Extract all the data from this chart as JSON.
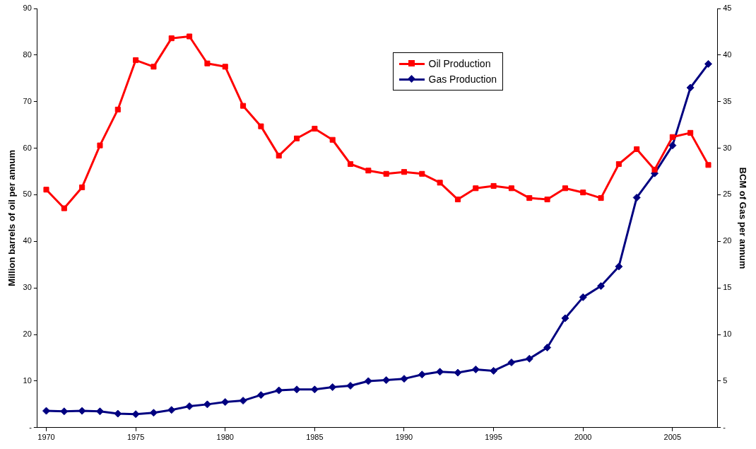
{
  "chart_data": {
    "type": "line",
    "ylabel": "Million barrels of oil per annum",
    "y2label": "BCM of Gas per annum",
    "x": [
      1970,
      1971,
      1972,
      1973,
      1974,
      1975,
      1976,
      1977,
      1978,
      1979,
      1980,
      1981,
      1982,
      1983,
      1984,
      1985,
      1986,
      1987,
      1988,
      1989,
      1990,
      1991,
      1992,
      1993,
      1994,
      1995,
      1996,
      1997,
      1998,
      1999,
      2000,
      2001,
      2002,
      2003,
      2004,
      2005,
      2006,
      2007
    ],
    "series": [
      {
        "name": "Oil Production",
        "color": "#ff0000",
        "marker": "square",
        "values": [
          51.1,
          47.1,
          51.6,
          60.6,
          68.3,
          78.9,
          77.5,
          83.6,
          84.0,
          78.2,
          77.5,
          69.1,
          64.7,
          58.4,
          62.1,
          64.2,
          61.8,
          56.6,
          55.2,
          54.5,
          54.9,
          54.5,
          52.6,
          49.0,
          51.4,
          51.9,
          51.4,
          49.3,
          49.0,
          51.4,
          50.5,
          49.3,
          56.6,
          59.8,
          55.4,
          62.4,
          63.3,
          56.4
        ]
      },
      {
        "name": "Gas Production",
        "color": "#000080",
        "marker": "diamond",
        "axis": "y2",
        "values": [
          1.8,
          1.75,
          1.8,
          1.75,
          1.5,
          1.45,
          1.6,
          1.9,
          2.3,
          2.5,
          2.75,
          2.9,
          3.5,
          4.0,
          4.1,
          4.1,
          4.35,
          4.5,
          5.0,
          5.1,
          5.25,
          5.7,
          6.0,
          5.9,
          6.25,
          6.1,
          7.0,
          7.4,
          8.6,
          11.75,
          14.0,
          15.2,
          17.3,
          24.7,
          27.3,
          30.3,
          36.5,
          39.05
        ]
      }
    ],
    "xlim": [
      1969.5,
      2007.5
    ],
    "xticks": [
      1970,
      1975,
      1980,
      1985,
      1990,
      1995,
      2000,
      2005
    ],
    "ylim": [
      0,
      90
    ],
    "yticks": [
      {
        "value": 0,
        "label": "-"
      },
      10,
      20,
      30,
      40,
      50,
      60,
      70,
      80,
      90
    ],
    "y2lim": [
      0,
      45
    ],
    "y2ticks": [
      {
        "value": 0,
        "label": "-"
      },
      5,
      10,
      15,
      20,
      25,
      30,
      35,
      40,
      45
    ],
    "grid": false,
    "legend": "top",
    "line_style": "solid"
  }
}
